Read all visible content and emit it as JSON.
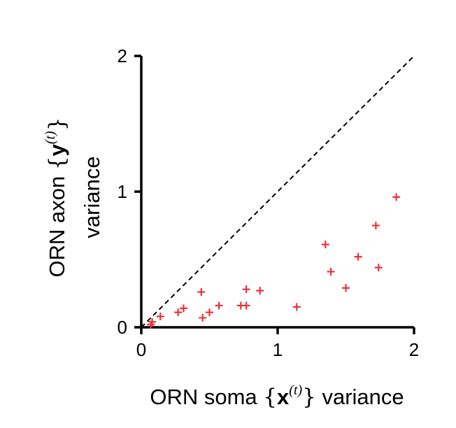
{
  "chart_data": {
    "type": "scatter",
    "xlabel": {
      "prefix": "ORN soma ",
      "open": "{",
      "var": "x",
      "sup": "(t)",
      "close": "}",
      "suffix": " variance"
    },
    "ylabel": {
      "line1_prefix": "ORN axon ",
      "open": "{",
      "var": "y",
      "sup": "(t)",
      "close": "}",
      "line2": "variance"
    },
    "xlim": [
      0,
      2
    ],
    "ylim": [
      0,
      2
    ],
    "xticks": [
      0,
      1,
      2
    ],
    "yticks": [
      0,
      1,
      2
    ],
    "xtick_labels": [
      "0",
      "1",
      "2"
    ],
    "ytick_labels": [
      "0",
      "1",
      "2"
    ],
    "grid": false,
    "reference_line": {
      "style": "dashed",
      "x": [
        0,
        2
      ],
      "y": [
        0,
        2
      ],
      "color": "#000000"
    },
    "marker": "+",
    "marker_color": "#e8333b",
    "points": [
      {
        "x": 0.07,
        "y": 0.02
      },
      {
        "x": 0.08,
        "y": 0.04
      },
      {
        "x": 0.14,
        "y": 0.08
      },
      {
        "x": 0.27,
        "y": 0.11
      },
      {
        "x": 0.31,
        "y": 0.14
      },
      {
        "x": 0.44,
        "y": 0.26
      },
      {
        "x": 0.45,
        "y": 0.07
      },
      {
        "x": 0.5,
        "y": 0.11
      },
      {
        "x": 0.57,
        "y": 0.16
      },
      {
        "x": 0.73,
        "y": 0.16
      },
      {
        "x": 0.77,
        "y": 0.16
      },
      {
        "x": 0.77,
        "y": 0.28
      },
      {
        "x": 0.87,
        "y": 0.27
      },
      {
        "x": 1.14,
        "y": 0.15
      },
      {
        "x": 1.35,
        "y": 0.61
      },
      {
        "x": 1.39,
        "y": 0.41
      },
      {
        "x": 1.5,
        "y": 0.29
      },
      {
        "x": 1.59,
        "y": 0.52
      },
      {
        "x": 1.72,
        "y": 0.75
      },
      {
        "x": 1.74,
        "y": 0.44
      },
      {
        "x": 1.87,
        "y": 0.96
      }
    ]
  }
}
